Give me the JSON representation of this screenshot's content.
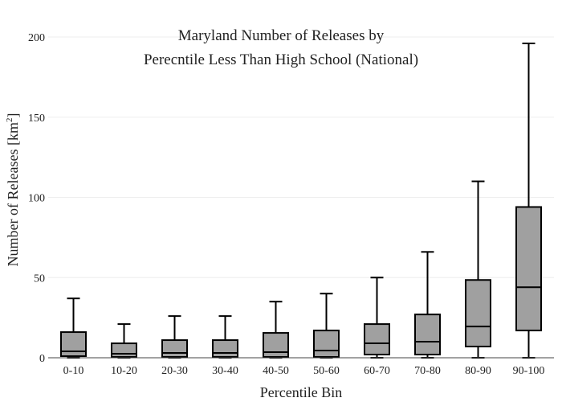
{
  "chart_data": {
    "type": "box",
    "title_lines": [
      "Maryland Number of Releases by",
      "Perecntile Less Than High School (National)"
    ],
    "xlabel": "Percentile Bin",
    "ylabel": "Number of Releases  [km",
    "ylabel_sup": "2",
    "ylabel_close": "]",
    "ylim": [
      0,
      200
    ],
    "yticks": [
      0,
      50,
      100,
      150,
      200
    ],
    "grid": true,
    "box_color": "#a0a0a0",
    "line_color": "#000000",
    "categories": [
      "0-10",
      "10-20",
      "20-30",
      "30-40",
      "40-50",
      "50-60",
      "60-70",
      "70-80",
      "80-90",
      "90-100"
    ],
    "boxes": [
      {
        "min": 0,
        "q1": 1,
        "median": 4,
        "q3": 16,
        "max": 37
      },
      {
        "min": 0,
        "q1": 0.5,
        "median": 2.5,
        "q3": 9,
        "max": 21
      },
      {
        "min": 0,
        "q1": 0.5,
        "median": 3,
        "q3": 11,
        "max": 26
      },
      {
        "min": 0,
        "q1": 0.5,
        "median": 3,
        "q3": 11,
        "max": 26
      },
      {
        "min": 0,
        "q1": 0.5,
        "median": 3.5,
        "q3": 15.5,
        "max": 35
      },
      {
        "min": 0,
        "q1": 0.5,
        "median": 4.5,
        "q3": 17,
        "max": 40
      },
      {
        "min": 0,
        "q1": 2,
        "median": 9,
        "q3": 21,
        "max": 50
      },
      {
        "min": 0,
        "q1": 2,
        "median": 10,
        "q3": 27,
        "max": 66
      },
      {
        "min": 0,
        "q1": 7,
        "median": 19.5,
        "q3": 48.5,
        "max": 110
      },
      {
        "min": 0,
        "q1": 17,
        "median": 44,
        "q3": 94,
        "max": 196
      }
    ]
  }
}
